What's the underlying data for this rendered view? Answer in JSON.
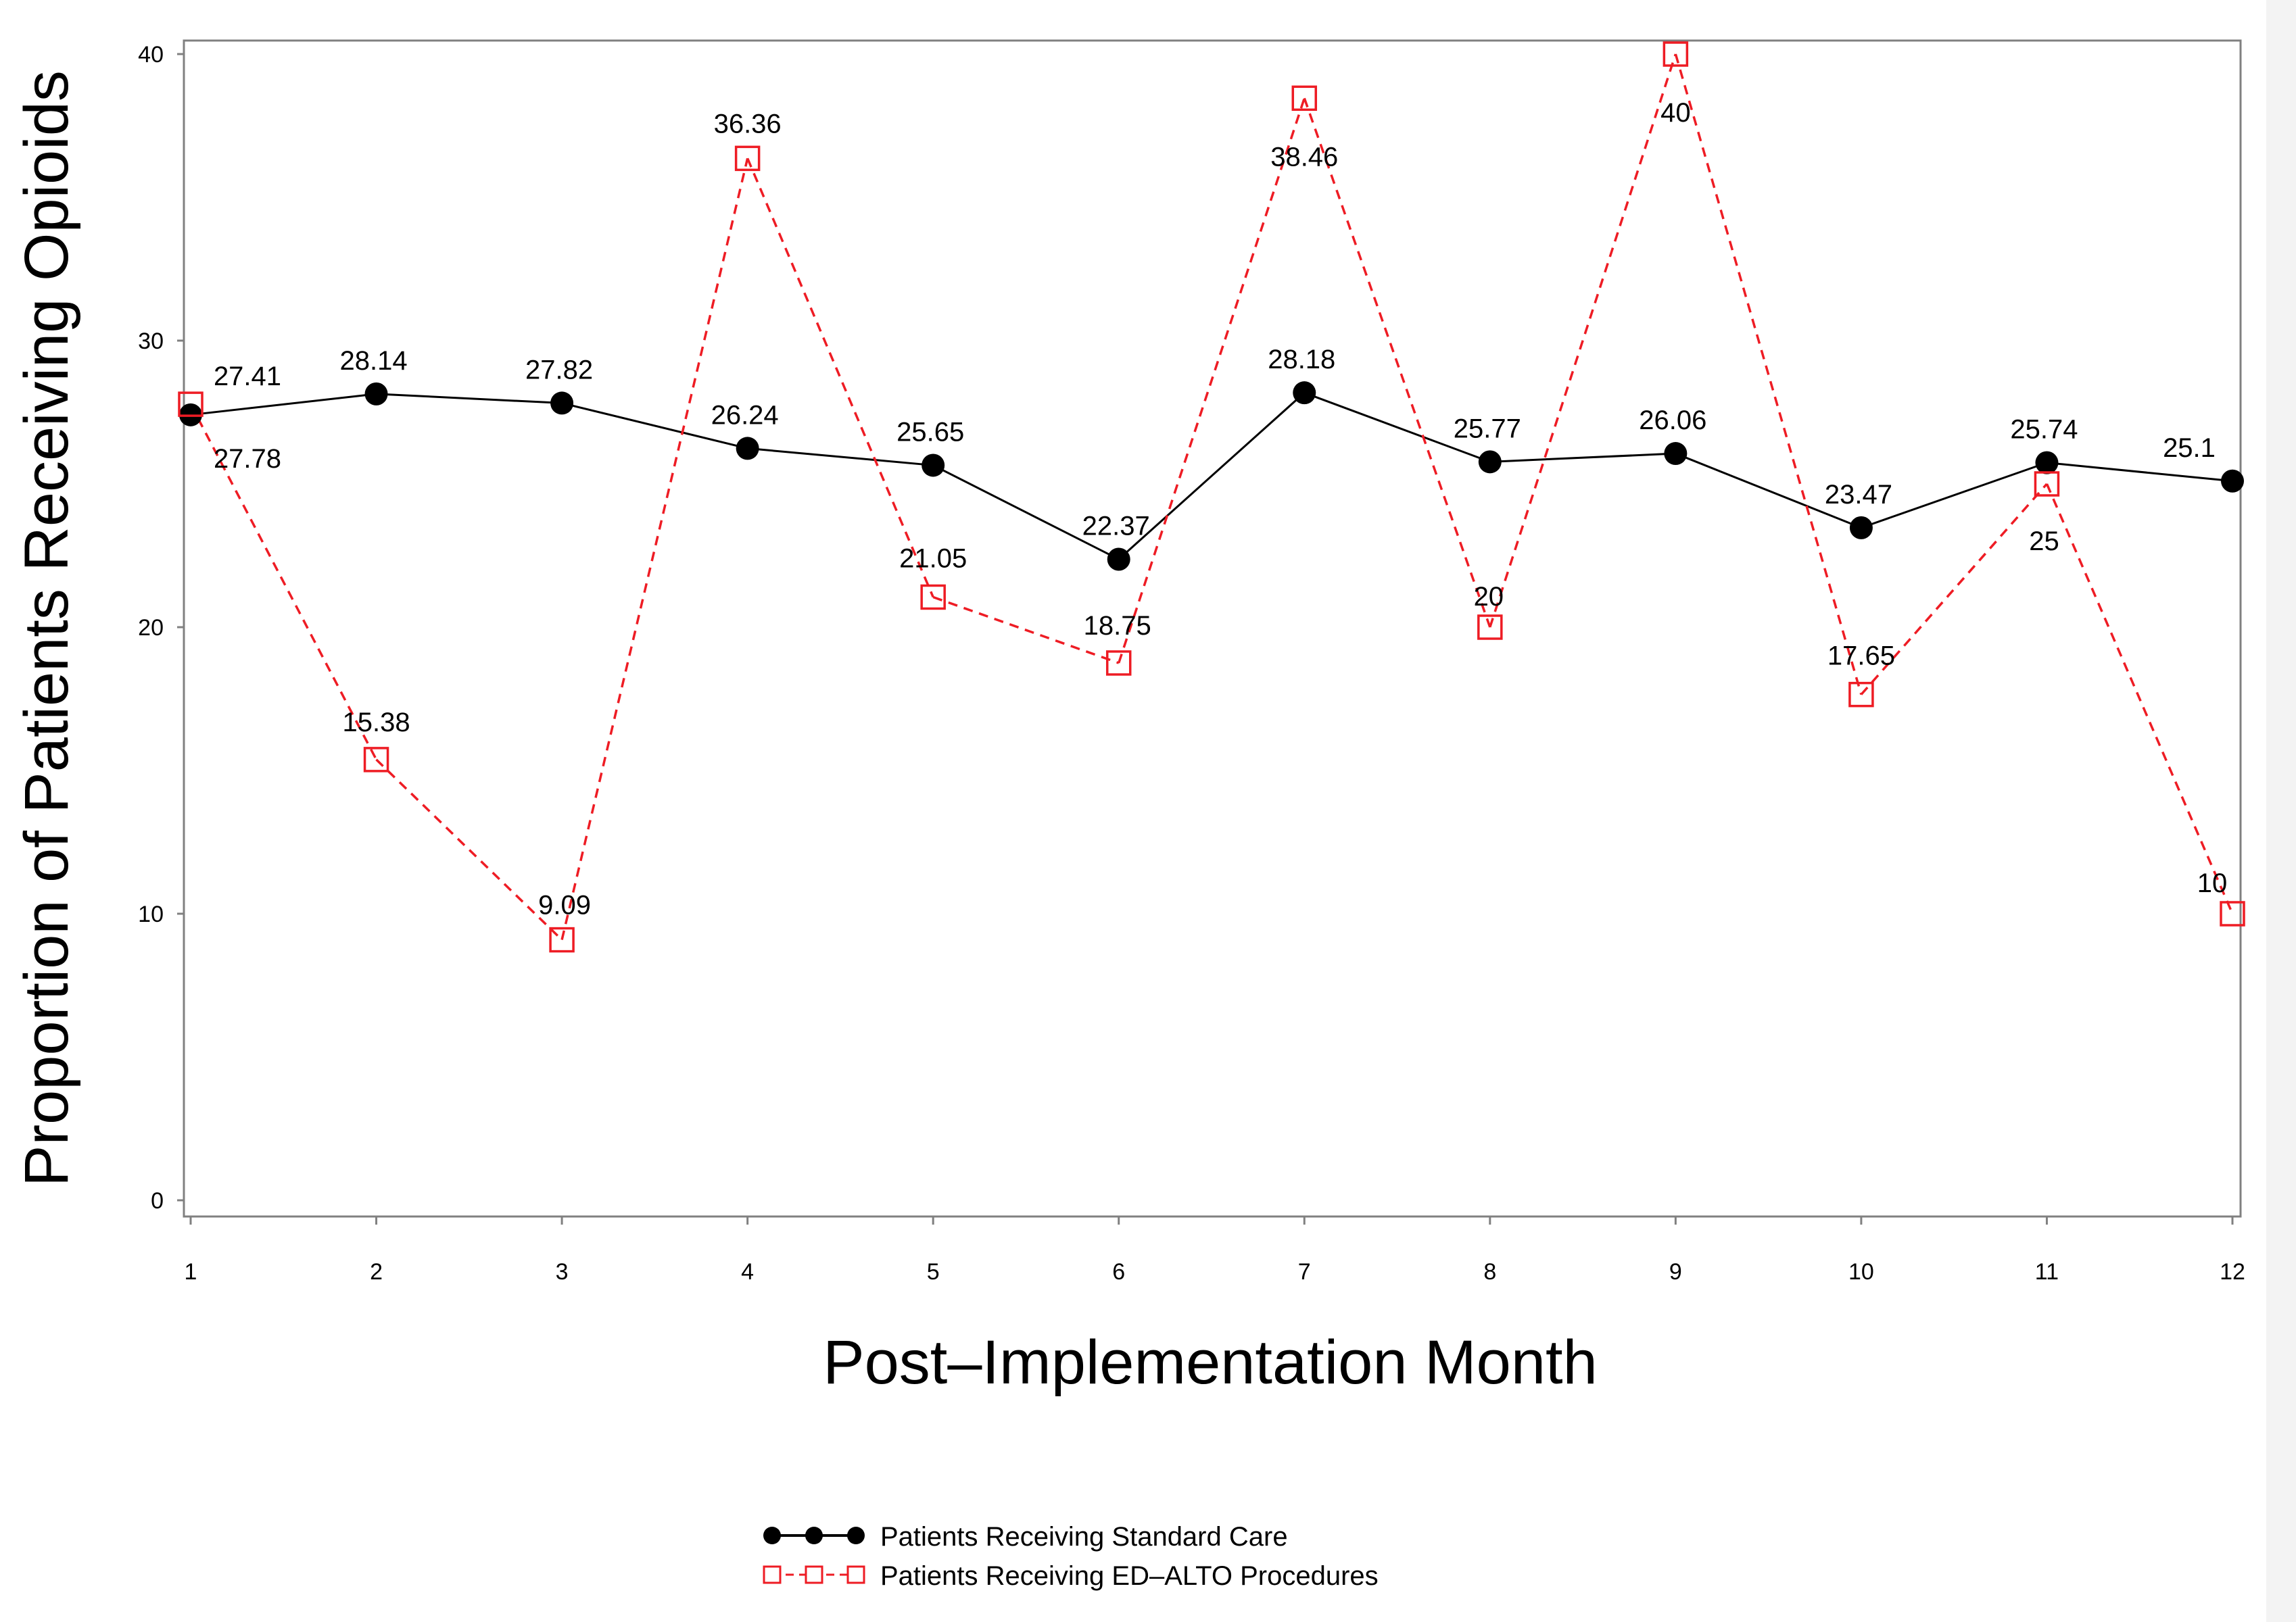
{
  "chart_data": {
    "type": "line",
    "title": "",
    "xlabel": "Post–Implementation Month",
    "ylabel": "Proportion of Patients Receiving Opioids",
    "x": [
      1,
      2,
      3,
      4,
      5,
      6,
      7,
      8,
      9,
      10,
      11,
      12
    ],
    "xlim": [
      1,
      12
    ],
    "ylim": [
      0,
      40
    ],
    "yticks": [
      0,
      10,
      20,
      30,
      40
    ],
    "grid": false,
    "legend_position": "bottom",
    "series": [
      {
        "name": "Patients Receiving Standard Care",
        "color": "#000000",
        "line_style": "solid",
        "marker": "filled-circle",
        "values": [
          27.41,
          28.14,
          27.82,
          26.24,
          25.65,
          22.37,
          28.18,
          25.77,
          26.06,
          23.47,
          25.74,
          25.1
        ],
        "labels": [
          "27.41",
          "28.14",
          "27.82",
          "26.24",
          "25.65",
          "22.37",
          "28.18",
          "25.77",
          "26.06",
          "23.47",
          "25.74",
          "25.1"
        ]
      },
      {
        "name": "Patients Receiving ED–ALTO Procedures",
        "color": "#ee1c24",
        "line_style": "dashed",
        "marker": "open-square",
        "values": [
          27.78,
          15.38,
          9.09,
          36.36,
          21.05,
          18.75,
          38.46,
          20,
          40,
          17.65,
          25,
          10
        ],
        "labels": [
          "27.78",
          "15.38",
          "9.09",
          "36.36",
          "21.05",
          "18.75",
          "38.46",
          "20",
          "40",
          "17.65",
          "25",
          "10"
        ]
      }
    ]
  }
}
